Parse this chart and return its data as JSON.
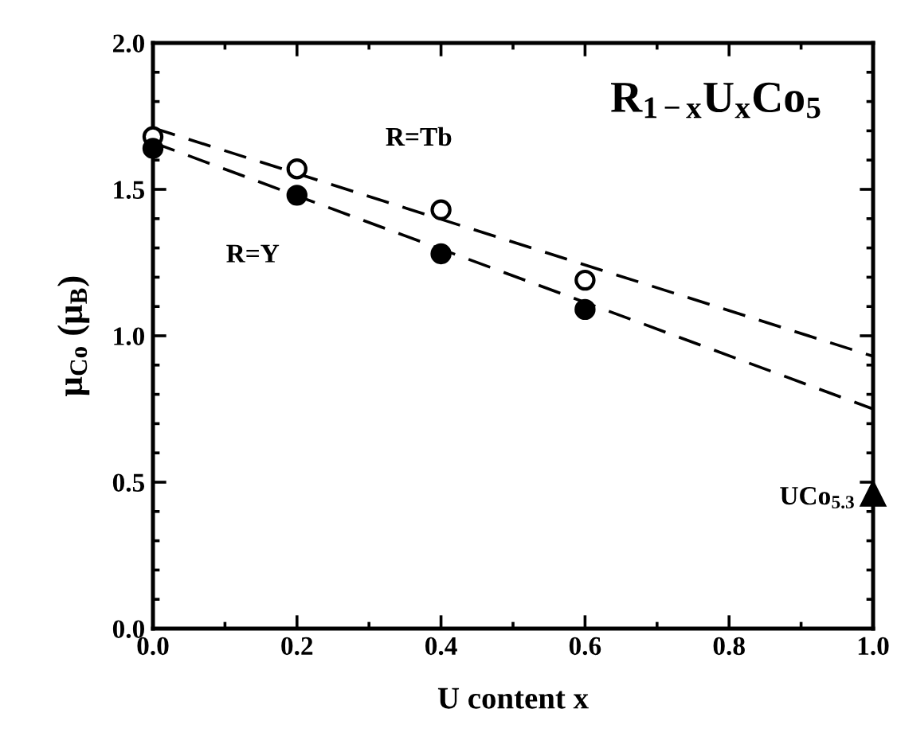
{
  "chart_data": {
    "type": "scatter",
    "title": "R$_{1−x}$U$_{x}$Co$_{5}$",
    "xlabel": "U content x",
    "ylabel": "μ$_{Co}$ (μ$_{B}$)",
    "xlim": [
      0,
      1
    ],
    "ylim": [
      0,
      2
    ],
    "xticks": [
      {
        "value": 0,
        "label": "0.0"
      },
      {
        "value": 0.2,
        "label": "0.2"
      },
      {
        "value": 0.4,
        "label": "0.4"
      },
      {
        "value": 0.6,
        "label": "0.6"
      },
      {
        "value": 0.8,
        "label": "0.8"
      },
      {
        "value": 1,
        "label": "1.0"
      }
    ],
    "yticks": [
      {
        "value": 0,
        "label": "0.0"
      },
      {
        "value": 0.5,
        "label": "0.5"
      },
      {
        "value": 1,
        "label": "1.0"
      },
      {
        "value": 1.5,
        "label": "1.5"
      },
      {
        "value": 2,
        "label": "2.0"
      }
    ],
    "grid": false,
    "series": [
      {
        "name": "R=Tb",
        "marker": "circle",
        "color": "#ffffff",
        "x": [
          0,
          0.2,
          0.4,
          0.6
        ],
        "values": [
          1.68,
          1.57,
          1.43,
          1.19
        ]
      },
      {
        "name": "R=Y",
        "marker": "circle",
        "color": "#000000",
        "x": [
          0,
          0.2,
          0.4,
          0.6
        ],
        "values": [
          1.64,
          1.48,
          1.28,
          1.09
        ]
      },
      {
        "name": "UCo$_{5.3}$",
        "marker": "triangle",
        "color": "#000000",
        "x": [
          1
        ],
        "values": [
          0.46
        ]
      },
      {
        "type": "line",
        "line_style": "dashed",
        "color": "#000000",
        "x": [
          0,
          1
        ],
        "values": [
          1.71,
          0.93
        ]
      },
      {
        "type": "line",
        "line_style": "dashed",
        "color": "#000000",
        "x": [
          0,
          1
        ],
        "values": [
          1.66,
          0.75
        ]
      }
    ]
  }
}
